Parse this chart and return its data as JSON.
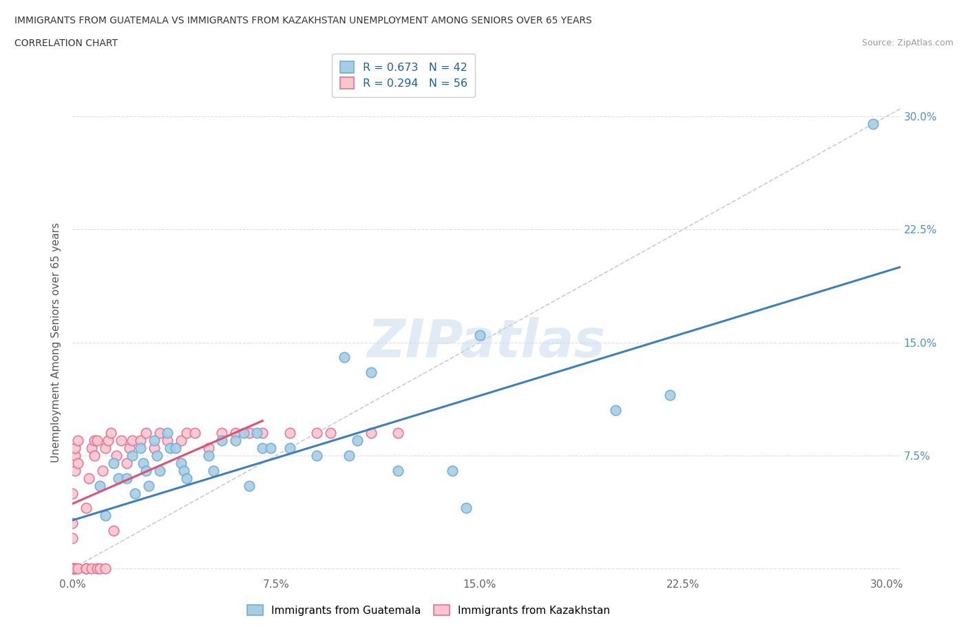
{
  "title_line1": "IMMIGRANTS FROM GUATEMALA VS IMMIGRANTS FROM KAZAKHSTAN UNEMPLOYMENT AMONG SENIORS OVER 65 YEARS",
  "title_line2": "CORRELATION CHART",
  "source_text": "Source: ZipAtlas.com",
  "ylabel": "Unemployment Among Seniors over 65 years",
  "xlim": [
    0.0,
    0.305
  ],
  "ylim": [
    -0.005,
    0.305
  ],
  "xtick_vals": [
    0.0,
    0.075,
    0.15,
    0.225,
    0.3
  ],
  "ytick_vals": [
    0.0,
    0.075,
    0.15,
    0.225,
    0.3
  ],
  "xtick_labels": [
    "0.0%",
    "7.5%",
    "15.0%",
    "22.5%",
    "30.0%"
  ],
  "right_ytick_labels": [
    "",
    "7.5%",
    "15.0%",
    "22.5%",
    "30.0%"
  ],
  "watermark": "ZIPatlas",
  "legend_r1": "R = 0.673   N = 42",
  "legend_r2": "R = 0.294   N = 56",
  "color_blue_face": "#a8cce4",
  "color_blue_edge": "#6baed6",
  "color_pink_face": "#f9c6d0",
  "color_pink_edge": "#e87090",
  "color_line_blue": "#3a7fc1",
  "color_line_pink": "#e05070",
  "color_line_gray": "#cccccc",
  "guatemala_x": [
    0.01,
    0.012,
    0.015,
    0.017,
    0.02,
    0.022,
    0.023,
    0.025,
    0.026,
    0.027,
    0.028,
    0.03,
    0.031,
    0.032,
    0.035,
    0.036,
    0.038,
    0.04,
    0.041,
    0.042,
    0.05,
    0.052,
    0.055,
    0.06,
    0.063,
    0.065,
    0.068,
    0.07,
    0.073,
    0.08,
    0.09,
    0.1,
    0.102,
    0.105,
    0.11,
    0.12,
    0.14,
    0.145,
    0.15,
    0.2,
    0.22,
    0.295
  ],
  "guatemala_y": [
    0.055,
    0.035,
    0.07,
    0.06,
    0.06,
    0.075,
    0.05,
    0.08,
    0.07,
    0.065,
    0.055,
    0.085,
    0.075,
    0.065,
    0.09,
    0.08,
    0.08,
    0.07,
    0.065,
    0.06,
    0.075,
    0.065,
    0.085,
    0.085,
    0.09,
    0.055,
    0.09,
    0.08,
    0.08,
    0.08,
    0.075,
    0.14,
    0.075,
    0.085,
    0.13,
    0.065,
    0.065,
    0.04,
    0.155,
    0.105,
    0.115,
    0.295
  ],
  "kazakhstan_x": [
    0.0,
    0.0,
    0.0,
    0.0,
    0.0,
    0.0,
    0.0,
    0.0,
    0.001,
    0.001,
    0.001,
    0.001,
    0.001,
    0.002,
    0.002,
    0.002,
    0.005,
    0.005,
    0.005,
    0.006,
    0.007,
    0.007,
    0.008,
    0.008,
    0.009,
    0.009,
    0.01,
    0.011,
    0.012,
    0.012,
    0.013,
    0.014,
    0.015,
    0.016,
    0.018,
    0.02,
    0.021,
    0.022,
    0.025,
    0.027,
    0.03,
    0.032,
    0.035,
    0.04,
    0.042,
    0.045,
    0.05,
    0.055,
    0.06,
    0.065,
    0.07,
    0.08,
    0.09,
    0.095,
    0.11,
    0.12
  ],
  "kazakhstan_y": [
    0.0,
    0.0,
    0.0,
    0.0,
    0.0,
    0.02,
    0.03,
    0.05,
    0.0,
    0.0,
    0.065,
    0.075,
    0.08,
    0.0,
    0.07,
    0.085,
    0.0,
    0.0,
    0.04,
    0.06,
    0.0,
    0.08,
    0.075,
    0.085,
    0.0,
    0.085,
    0.0,
    0.065,
    0.0,
    0.08,
    0.085,
    0.09,
    0.025,
    0.075,
    0.085,
    0.07,
    0.08,
    0.085,
    0.085,
    0.09,
    0.08,
    0.09,
    0.085,
    0.085,
    0.09,
    0.09,
    0.08,
    0.09,
    0.09,
    0.09,
    0.09,
    0.09,
    0.09,
    0.09,
    0.09,
    0.09
  ],
  "blue_line_x": [
    0.0,
    0.305
  ],
  "blue_line_y": [
    0.032,
    0.2
  ],
  "pink_line_x": [
    0.0,
    0.07
  ],
  "pink_line_y": [
    0.043,
    0.098
  ],
  "gray_line_x": [
    0.0,
    0.305
  ],
  "gray_line_y": [
    0.0,
    0.305
  ]
}
